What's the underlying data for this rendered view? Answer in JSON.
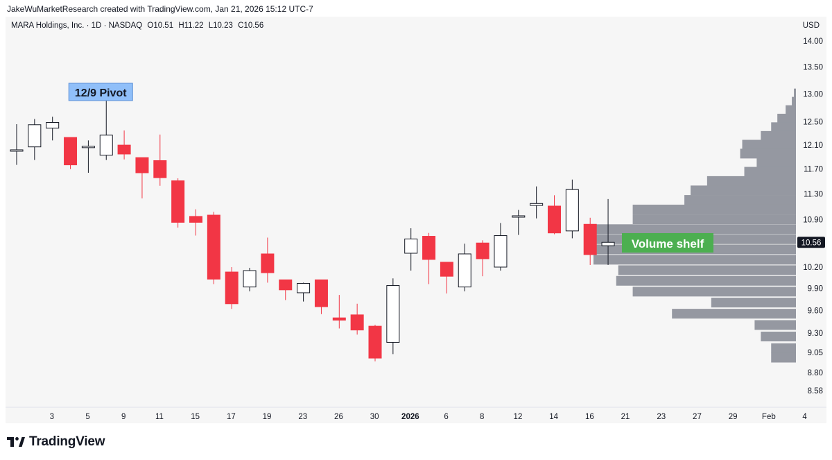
{
  "header": {
    "attribution": "JakeWuMarketResearch created with TradingView.com, Jan 21, 2026 15:12 UTC-7"
  },
  "symbol_bar": {
    "name": "MARA Holdings, Inc. · 1D · NASDAQ",
    "open": "O10.51",
    "high": "H11.22",
    "low": "L10.23",
    "close": "C10.56",
    "currency": "USD"
  },
  "footer": {
    "brand": "TradingView"
  },
  "colors": {
    "up_fill": "#ffffff",
    "up_border": "#131722",
    "down_fill": "#f23645",
    "down_border": "#f23645",
    "profile": "#9598a1",
    "pivot_label_bg": "#90bff9",
    "shelf_label_bg": "#4caf50",
    "price_tag_bg": "#131722",
    "background": "#f6f6f6"
  },
  "chart_data": {
    "type": "candlestick",
    "title": "MARA Holdings, Inc. · 1D · NASDAQ",
    "y_axis": {
      "ticks": [
        "14.00",
        "13.50",
        "13.00",
        "12.50",
        "12.10",
        "11.70",
        "11.30",
        "10.90",
        "10.20",
        "9.90",
        "9.60",
        "9.30",
        "9.05",
        "8.80",
        "8.58"
      ],
      "range": [
        8.45,
        14.35
      ],
      "scale": "log",
      "current_price": "10.56"
    },
    "x_axis": {
      "ticks": [
        {
          "label": "3",
          "slot": 1
        },
        {
          "label": "5",
          "slot": 3
        },
        {
          "label": "9",
          "slot": 5
        },
        {
          "label": "11",
          "slot": 7
        },
        {
          "label": "15",
          "slot": 9
        },
        {
          "label": "17",
          "slot": 11
        },
        {
          "label": "19",
          "slot": 13
        },
        {
          "label": "23",
          "slot": 15
        },
        {
          "label": "26",
          "slot": 17
        },
        {
          "label": "30",
          "slot": 19
        },
        {
          "label": "2026",
          "slot": 21,
          "bold": true
        },
        {
          "label": "6",
          "slot": 23
        },
        {
          "label": "8",
          "slot": 25
        },
        {
          "label": "12",
          "slot": 27
        },
        {
          "label": "14",
          "slot": 29
        },
        {
          "label": "16",
          "slot": 31
        },
        {
          "label": "21",
          "slot": 33
        },
        {
          "label": "23",
          "slot": 35
        },
        {
          "label": "27",
          "slot": 37
        },
        {
          "label": "29",
          "slot": 39
        },
        {
          "label": "Feb",
          "slot": 41
        },
        {
          "label": "4",
          "slot": 43
        }
      ]
    },
    "candles": [
      {
        "date": "Dec 2",
        "o": 12.0,
        "h": 12.46,
        "l": 11.77,
        "c": 12.02
      },
      {
        "date": "Dec 3",
        "o": 12.07,
        "h": 12.55,
        "l": 11.85,
        "c": 12.45
      },
      {
        "date": "Dec 4",
        "o": 12.39,
        "h": 12.59,
        "l": 12.18,
        "c": 12.49
      },
      {
        "date": "Dec 5",
        "o": 12.23,
        "h": 12.23,
        "l": 11.7,
        "c": 11.77
      },
      {
        "date": "Dec 8",
        "o": 12.06,
        "h": 12.18,
        "l": 11.64,
        "c": 12.08
      },
      {
        "date": "Dec 9",
        "o": 11.93,
        "h": 12.91,
        "l": 11.85,
        "c": 12.27
      },
      {
        "date": "Dec 10",
        "o": 12.1,
        "h": 12.35,
        "l": 11.86,
        "c": 11.95
      },
      {
        "date": "Dec 11",
        "o": 11.89,
        "h": 11.89,
        "l": 11.23,
        "c": 11.64
      },
      {
        "date": "Dec 12",
        "o": 11.84,
        "h": 12.28,
        "l": 11.43,
        "c": 11.56
      },
      {
        "date": "Dec 15",
        "o": 11.51,
        "h": 11.55,
        "l": 10.78,
        "c": 10.86
      },
      {
        "date": "Dec 16",
        "o": 10.95,
        "h": 11.06,
        "l": 10.66,
        "c": 10.86
      },
      {
        "date": "Dec 17",
        "o": 10.97,
        "h": 11.02,
        "l": 9.96,
        "c": 10.03
      },
      {
        "date": "Dec 18",
        "o": 10.13,
        "h": 10.2,
        "l": 9.62,
        "c": 9.69
      },
      {
        "date": "Dec 19",
        "o": 9.92,
        "h": 10.19,
        "l": 9.86,
        "c": 10.15
      },
      {
        "date": "Dec 22",
        "o": 10.39,
        "h": 10.63,
        "l": 9.98,
        "c": 10.12
      },
      {
        "date": "Dec 23",
        "o": 10.02,
        "h": 10.02,
        "l": 9.74,
        "c": 9.88
      },
      {
        "date": "Dec 24",
        "o": 9.84,
        "h": 9.98,
        "l": 9.72,
        "c": 9.97
      },
      {
        "date": "Dec 26",
        "o": 10.02,
        "h": 10.02,
        "l": 9.55,
        "c": 9.65
      },
      {
        "date": "Dec 29",
        "o": 9.5,
        "h": 9.81,
        "l": 9.36,
        "c": 9.47
      },
      {
        "date": "Dec 30",
        "o": 9.54,
        "h": 9.69,
        "l": 9.28,
        "c": 9.34
      },
      {
        "date": "Dec 31",
        "o": 9.39,
        "h": 9.41,
        "l": 8.94,
        "c": 8.98
      },
      {
        "date": "Jan 2",
        "o": 9.18,
        "h": 10.04,
        "l": 9.03,
        "c": 9.94
      },
      {
        "date": "Jan 5",
        "o": 10.4,
        "h": 10.77,
        "l": 10.15,
        "c": 10.61
      },
      {
        "date": "Jan 6",
        "o": 10.65,
        "h": 10.7,
        "l": 9.96,
        "c": 10.31
      },
      {
        "date": "Jan 7",
        "o": 10.27,
        "h": 10.27,
        "l": 9.83,
        "c": 10.07
      },
      {
        "date": "Jan 8",
        "o": 9.92,
        "h": 10.54,
        "l": 9.86,
        "c": 10.39
      },
      {
        "date": "Jan 9",
        "o": 10.55,
        "h": 10.59,
        "l": 10.07,
        "c": 10.32
      },
      {
        "date": "Jan 12",
        "o": 10.2,
        "h": 10.85,
        "l": 10.15,
        "c": 10.66
      },
      {
        "date": "Jan 13",
        "o": 10.94,
        "h": 11.05,
        "l": 10.67,
        "c": 10.96
      },
      {
        "date": "Jan 14",
        "o": 11.12,
        "h": 11.42,
        "l": 10.92,
        "c": 11.15
      },
      {
        "date": "Jan 15",
        "o": 11.11,
        "h": 11.28,
        "l": 10.68,
        "c": 10.7
      },
      {
        "date": "Jan 16",
        "o": 10.73,
        "h": 11.53,
        "l": 10.62,
        "c": 11.37
      },
      {
        "date": "Jan 20",
        "o": 10.83,
        "h": 10.93,
        "l": 10.23,
        "c": 10.38
      },
      {
        "date": "Jan 21",
        "o": 10.51,
        "h": 11.22,
        "l": 10.23,
        "c": 10.56
      }
    ],
    "volume_profile": [
      {
        "price": 13.0,
        "width": 0.01
      },
      {
        "price": 12.85,
        "width": 0.02
      },
      {
        "price": 12.7,
        "width": 0.05
      },
      {
        "price": 12.55,
        "width": 0.09
      },
      {
        "price": 12.4,
        "width": 0.12
      },
      {
        "price": 12.25,
        "width": 0.17
      },
      {
        "price": 12.1,
        "width": 0.26
      },
      {
        "price": 11.95,
        "width": 0.27
      },
      {
        "price": 11.8,
        "width": 0.19
      },
      {
        "price": 11.65,
        "width": 0.25
      },
      {
        "price": 11.5,
        "width": 0.43
      },
      {
        "price": 11.35,
        "width": 0.51
      },
      {
        "price": 11.2,
        "width": 0.54
      },
      {
        "price": 11.05,
        "width": 0.79
      },
      {
        "price": 10.9,
        "width": 0.79
      },
      {
        "price": 10.75,
        "width": 1.0
      },
      {
        "price": 10.6,
        "width": 1.0
      },
      {
        "price": 10.45,
        "width": 1.0
      },
      {
        "price": 10.3,
        "width": 0.98
      },
      {
        "price": 10.15,
        "width": 0.86
      },
      {
        "price": 10.0,
        "width": 0.87
      },
      {
        "price": 9.85,
        "width": 0.79
      },
      {
        "price": 9.7,
        "width": 0.41
      },
      {
        "price": 9.55,
        "width": 0.6
      },
      {
        "price": 9.4,
        "width": 0.2
      },
      {
        "price": 9.25,
        "width": 0.17
      },
      {
        "price": 9.1,
        "width": 0.12
      },
      {
        "price": 8.98,
        "width": 0.12
      }
    ],
    "annotations": [
      {
        "text": "12/9 Pivot",
        "candle": 5
      },
      {
        "text": "Volume shelf",
        "candle": 33
      }
    ]
  }
}
